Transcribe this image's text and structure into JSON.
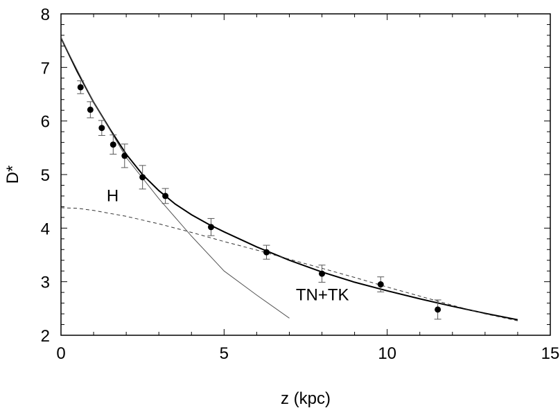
{
  "chart_data": {
    "type": "scatter",
    "title": "",
    "xlabel": "z (kpc)",
    "ylabel": "D*",
    "xlim": [
      0,
      15
    ],
    "ylim": [
      2,
      8
    ],
    "xticks": [
      0,
      5,
      10,
      15
    ],
    "yticks": [
      2,
      3,
      4,
      5,
      6,
      7,
      8
    ],
    "x_tick_labels": [
      "0",
      "5",
      "10",
      "15"
    ],
    "y_tick_labels": [
      "2",
      "3",
      "4",
      "5",
      "6",
      "7",
      "8"
    ],
    "grid": false,
    "legend": "none",
    "series": [
      {
        "type": "scatter",
        "style": "filled circles with error bars",
        "x": [
          0.6,
          0.9,
          1.25,
          1.6,
          1.95,
          2.5,
          3.2,
          4.6,
          6.3,
          8.0,
          9.8,
          11.55
        ],
        "y": [
          6.63,
          6.21,
          5.87,
          5.56,
          5.35,
          4.95,
          4.6,
          4.02,
          3.55,
          3.15,
          2.95,
          2.48
        ],
        "err": [
          0.12,
          0.15,
          0.14,
          0.18,
          0.22,
          0.22,
          0.14,
          0.16,
          0.13,
          0.16,
          0.14,
          0.18
        ]
      },
      {
        "type": "line",
        "style": "solid",
        "x": [
          0,
          0.5,
          1,
          1.5,
          2,
          2.5,
          3,
          3.5,
          4,
          4.5,
          5,
          6,
          7,
          8,
          9,
          10,
          11,
          12,
          13,
          14
        ],
        "y": [
          7.55,
          6.92,
          6.35,
          5.85,
          5.38,
          5.0,
          4.7,
          4.45,
          4.25,
          4.08,
          3.93,
          3.65,
          3.4,
          3.18,
          2.99,
          2.83,
          2.68,
          2.54,
          2.41,
          2.29
        ]
      },
      {
        "type": "line",
        "style": "dashed",
        "x": [
          0,
          0.5,
          1,
          2,
          3,
          4,
          5,
          6,
          7,
          8,
          9,
          10,
          11,
          12,
          13,
          14
        ],
        "y": [
          4.38,
          4.37,
          4.33,
          4.22,
          4.08,
          3.92,
          3.75,
          3.59,
          3.42,
          3.25,
          3.08,
          2.9,
          2.73,
          2.56,
          2.4,
          2.27
        ]
      },
      {
        "type": "line",
        "style": "thin solid",
        "x": [
          0,
          1,
          2,
          3,
          4,
          5,
          6,
          7
        ],
        "y": [
          7.55,
          6.35,
          5.32,
          4.55,
          3.85,
          3.2,
          2.75,
          2.32
        ]
      }
    ],
    "annotations": [
      {
        "text": "H",
        "x": 1.4,
        "y": 4.5
      },
      {
        "text": "TN+TK",
        "x": 7.2,
        "y": 2.65
      }
    ]
  }
}
